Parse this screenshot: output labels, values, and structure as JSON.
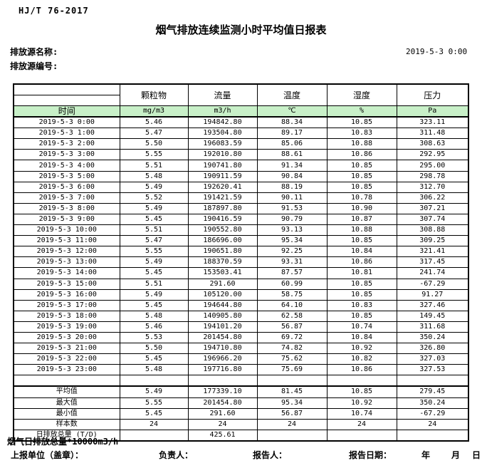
{
  "header": {
    "standard": "HJ/T  76-2017",
    "title": "烟气排放连续监测小时平均值日报表",
    "source_name_label": "排放源名称:",
    "source_id_label": "排放源编号:",
    "datetime": "2019-5-3 0:00"
  },
  "table": {
    "time_header": "时间",
    "columns": [
      {
        "name": "颗粒物",
        "unit": "mg/m3"
      },
      {
        "name": "流量",
        "unit": "m3/h"
      },
      {
        "name": "温度",
        "unit": "℃"
      },
      {
        "name": "湿度",
        "unit": "%"
      },
      {
        "name": "压力",
        "unit": "Pa"
      }
    ],
    "rows": [
      {
        "time": "2019-5-3 0:00",
        "values": [
          "5.46",
          "194842.80",
          "88.34",
          "10.85",
          "323.11"
        ]
      },
      {
        "time": "2019-5-3 1:00",
        "values": [
          "5.47",
          "193504.80",
          "89.17",
          "10.83",
          "311.48"
        ]
      },
      {
        "time": "2019-5-3 2:00",
        "values": [
          "5.50",
          "196083.59",
          "85.06",
          "10.88",
          "308.63"
        ]
      },
      {
        "time": "2019-5-3 3:00",
        "values": [
          "5.55",
          "192010.80",
          "88.61",
          "10.86",
          "292.95"
        ]
      },
      {
        "time": "2019-5-3 4:00",
        "values": [
          "5.51",
          "190741.80",
          "91.34",
          "10.85",
          "295.00"
        ]
      },
      {
        "time": "2019-5-3 5:00",
        "values": [
          "5.48",
          "190911.59",
          "90.84",
          "10.85",
          "298.78"
        ]
      },
      {
        "time": "2019-5-3 6:00",
        "values": [
          "5.49",
          "192620.41",
          "88.19",
          "10.85",
          "312.70"
        ]
      },
      {
        "time": "2019-5-3 7:00",
        "values": [
          "5.52",
          "191421.59",
          "90.11",
          "10.78",
          "306.22"
        ]
      },
      {
        "time": "2019-5-3 8:00",
        "values": [
          "5.49",
          "187897.80",
          "91.53",
          "10.90",
          "307.21"
        ]
      },
      {
        "time": "2019-5-3 9:00",
        "values": [
          "5.45",
          "190416.59",
          "90.79",
          "10.87",
          "307.74"
        ]
      },
      {
        "time": "2019-5-3 10:00",
        "values": [
          "5.51",
          "190552.80",
          "93.13",
          "10.88",
          "308.88"
        ]
      },
      {
        "time": "2019-5-3 11:00",
        "values": [
          "5.47",
          "186696.00",
          "95.34",
          "10.85",
          "309.25"
        ]
      },
      {
        "time": "2019-5-3 12:00",
        "values": [
          "5.55",
          "190651.80",
          "92.25",
          "10.84",
          "321.41"
        ]
      },
      {
        "time": "2019-5-3 13:00",
        "values": [
          "5.49",
          "188370.59",
          "93.31",
          "10.86",
          "317.45"
        ]
      },
      {
        "time": "2019-5-3 14:00",
        "values": [
          "5.45",
          "153503.41",
          "87.57",
          "10.81",
          "241.74"
        ]
      },
      {
        "time": "2019-5-3 15:00",
        "values": [
          "5.51",
          "291.60",
          "60.99",
          "10.85",
          "-67.29"
        ]
      },
      {
        "time": "2019-5-3 16:00",
        "values": [
          "5.49",
          "105120.00",
          "58.75",
          "10.85",
          "91.27"
        ]
      },
      {
        "time": "2019-5-3 17:00",
        "values": [
          "5.45",
          "194644.80",
          "64.10",
          "10.83",
          "327.46"
        ]
      },
      {
        "time": "2019-5-3 18:00",
        "values": [
          "5.48",
          "140905.80",
          "62.58",
          "10.85",
          "149.45"
        ]
      },
      {
        "time": "2019-5-3 19:00",
        "values": [
          "5.46",
          "194101.20",
          "56.87",
          "10.74",
          "311.68"
        ]
      },
      {
        "time": "2019-5-3 20:00",
        "values": [
          "5.53",
          "201454.80",
          "69.72",
          "10.84",
          "350.24"
        ]
      },
      {
        "time": "2019-5-3 21:00",
        "values": [
          "5.50",
          "194710.80",
          "74.82",
          "10.92",
          "326.80"
        ]
      },
      {
        "time": "2019-5-3 22:00",
        "values": [
          "5.45",
          "196966.20",
          "75.62",
          "10.82",
          "327.03"
        ]
      },
      {
        "time": "2019-5-3 23:00",
        "values": [
          "5.48",
          "197716.80",
          "75.69",
          "10.86",
          "327.53"
        ]
      }
    ],
    "summary": [
      {
        "label": "平均值",
        "values": [
          "5.49",
          "177339.10",
          "81.45",
          "10.85",
          "279.45"
        ]
      },
      {
        "label": "最大值",
        "values": [
          "5.55",
          "201454.80",
          "95.34",
          "10.92",
          "350.24"
        ]
      },
      {
        "label": "最小值",
        "values": [
          "5.45",
          "291.60",
          "56.87",
          "10.74",
          "-67.29"
        ]
      },
      {
        "label": "样本数",
        "values": [
          "24",
          "24",
          "24",
          "24",
          "24"
        ]
      },
      {
        "label": "日排放总量 (T/D)",
        "values": [
          "",
          "425.61",
          "",
          "",
          ""
        ]
      }
    ]
  },
  "footer": {
    "note": "烟气日排放总量*10000m3/h",
    "report_unit_label": "上报单位（盖章）：",
    "responsible_label": "负责人：",
    "reporter_label": "报告人：",
    "report_date_label": "报告日期：",
    "year_label": "年",
    "month_label": "月",
    "day_label": "日"
  },
  "colors": {
    "unit_row_green": "#c8f0c8",
    "border": "#000000"
  }
}
